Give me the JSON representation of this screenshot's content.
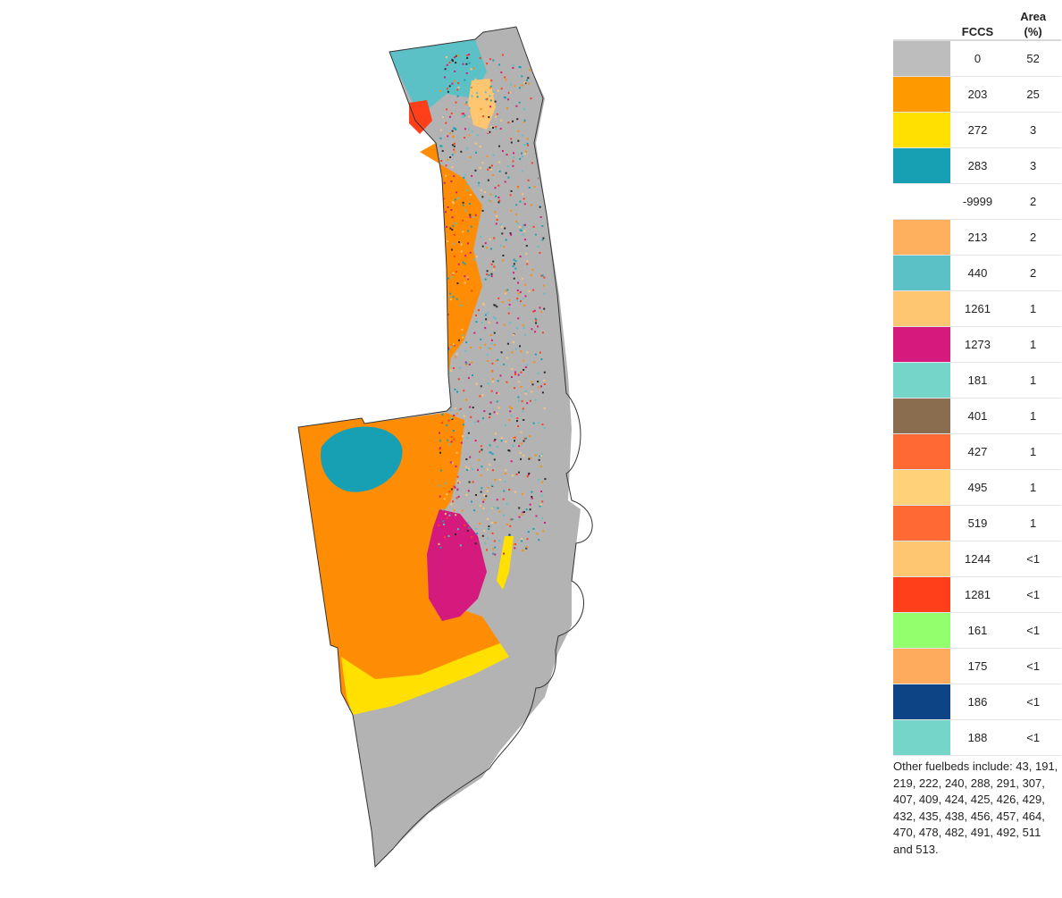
{
  "legend": {
    "headers": {
      "fccs": "FCCS",
      "area": "Area (%)"
    },
    "rows": [
      {
        "fccs": "0",
        "area": "52",
        "color": "#bdbdbd"
      },
      {
        "fccs": "203",
        "area": "25",
        "color": "#ff9900"
      },
      {
        "fccs": "272",
        "area": "3",
        "color": "#ffe000"
      },
      {
        "fccs": "283",
        "area": "3",
        "color": "#17a0b4"
      },
      {
        "fccs": "-9999",
        "area": "2",
        "color": "#ffffff"
      },
      {
        "fccs": "213",
        "area": "2",
        "color": "#ffb05e"
      },
      {
        "fccs": "440",
        "area": "2",
        "color": "#5cc1c7"
      },
      {
        "fccs": "1261",
        "area": "1",
        "color": "#ffc672"
      },
      {
        "fccs": "1273",
        "area": "1",
        "color": "#d41a7c"
      },
      {
        "fccs": "181",
        "area": "1",
        "color": "#76d5c9"
      },
      {
        "fccs": "401",
        "area": "1",
        "color": "#8a6d4f"
      },
      {
        "fccs": "427",
        "area": "1",
        "color": "#ff6933"
      },
      {
        "fccs": "495",
        "area": "1",
        "color": "#ffd27a"
      },
      {
        "fccs": "519",
        "area": "1",
        "color": "#ff6933"
      },
      {
        "fccs": "1244",
        "area": "<1",
        "color": "#ffc672"
      },
      {
        "fccs": "1281",
        "area": "<1",
        "color": "#ff3f1a"
      },
      {
        "fccs": "161",
        "area": "<1",
        "color": "#94ff6c"
      },
      {
        "fccs": "175",
        "area": "<1",
        "color": "#ffab5e"
      },
      {
        "fccs": "186",
        "area": "<1",
        "color": "#0d4485"
      },
      {
        "fccs": "188",
        "area": "<1",
        "color": "#76d5c9"
      }
    ],
    "other_note": "Other fuelbeds include: 43, 191, 219, 222, 240, 288, 291, 307, 407, 409, 424, 425, 426, 429, 432, 435, 438, 456, 457, 464, 470, 478, 482, 491, 492, 511 and 513."
  },
  "map": {
    "colors": {
      "gray": "#b3b3b3",
      "orange": "#ff8c05",
      "yellow": "#ffe000",
      "teal": "#17a0b4",
      "light_teal": "#5cc1c7",
      "magenta": "#d41a7c",
      "peach": "#ffc672",
      "red": "#ff3f1a",
      "outline": "#333333"
    }
  }
}
